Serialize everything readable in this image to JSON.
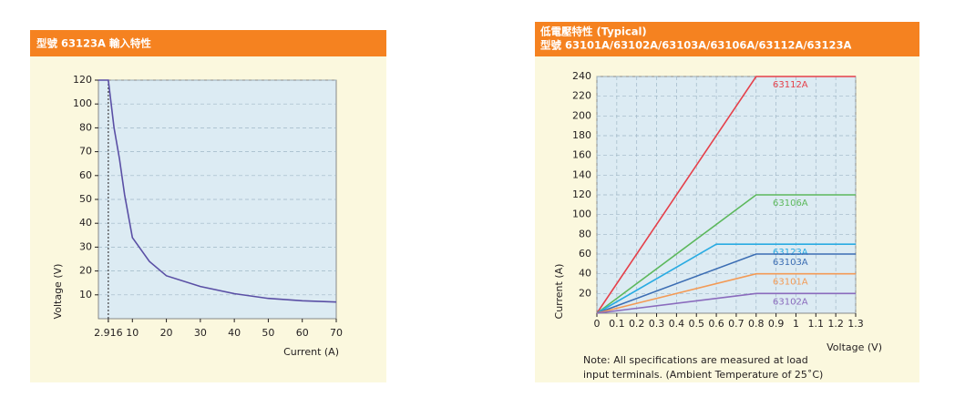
{
  "chart_data": [
    {
      "type": "line",
      "title": "型號 63123A 輸入特性",
      "x_label": "Current (A)",
      "y_label": "Voltage (V)",
      "xlim": [
        0,
        70
      ],
      "xticks": [
        2.916,
        10,
        20,
        30,
        40,
        50,
        60,
        70
      ],
      "ylim": [
        0,
        120
      ],
      "yticks": [
        10,
        20,
        30,
        40,
        50,
        60,
        70,
        80,
        100,
        120
      ],
      "grid": true,
      "series": [
        {
          "color": "#5a4fa5",
          "x": [
            0,
            2.916,
            4.6,
            6.2,
            7.7,
            10,
            15,
            20,
            30,
            40,
            50,
            60,
            70
          ],
          "values": [
            120,
            120,
            80,
            67,
            52,
            34,
            24,
            18,
            13.5,
            10.5,
            8.5,
            7.5,
            7
          ]
        }
      ]
    },
    {
      "type": "line",
      "title": "低電壓特性 (Typical)",
      "subtitle": "型號 63101A/63102A/63103A/63106A/63112A/63123A",
      "x_label": "Voltage (V)",
      "y_label": "Current (A)",
      "xlim": [
        0,
        1.3
      ],
      "xticks": [
        0,
        0.1,
        0.2,
        0.3,
        0.4,
        0.5,
        0.6,
        0.7,
        0.8,
        0.9,
        1.0,
        1.1,
        1.2,
        1.3
      ],
      "ylim": [
        0,
        240
      ],
      "yticks": [
        20,
        40,
        60,
        80,
        100,
        120,
        140,
        160,
        180,
        200,
        220,
        240
      ],
      "grid": true,
      "notes": [
        "Note: All specifications are measured at load",
        "input terminals. (Ambient Temperature of 25˚C)"
      ],
      "series": [
        {
          "name": "63112A",
          "color": "#e5404a",
          "x": [
            0,
            0.8,
            1.3
          ],
          "values": [
            0,
            240,
            240
          ]
        },
        {
          "name": "63106A",
          "color": "#5cb85c",
          "x": [
            0,
            0.8,
            1.3
          ],
          "values": [
            0,
            120,
            120
          ]
        },
        {
          "name": "63123A",
          "color": "#29abe2",
          "x": [
            0,
            0.6,
            1.3
          ],
          "values": [
            0,
            70,
            70
          ]
        },
        {
          "name": "63103A",
          "color": "#3b6db3",
          "x": [
            0,
            0.8,
            1.3
          ],
          "values": [
            0,
            60,
            60
          ]
        },
        {
          "name": "63101A",
          "color": "#f39a55",
          "x": [
            0,
            0.8,
            1.3
          ],
          "values": [
            0,
            40,
            40
          ]
        },
        {
          "name": "63102A",
          "color": "#8a6bbd",
          "x": [
            0,
            0.8,
            1.3
          ],
          "values": [
            0,
            20,
            20
          ]
        }
      ]
    }
  ]
}
